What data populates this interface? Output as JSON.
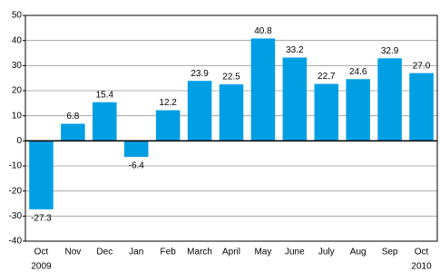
{
  "chart_data": {
    "type": "bar",
    "categories": [
      "Oct",
      "Nov",
      "Dec",
      "Jan",
      "Feb",
      "March",
      "April",
      "May",
      "June",
      "July",
      "Aug",
      "Sep",
      "Oct"
    ],
    "x_sublabels": [
      "2009",
      null,
      null,
      null,
      null,
      null,
      null,
      null,
      null,
      null,
      null,
      null,
      "2010"
    ],
    "values": [
      -27.3,
      6.8,
      15.4,
      -6.4,
      12.2,
      23.9,
      22.5,
      40.8,
      33.2,
      22.7,
      24.6,
      32.9,
      27.0
    ],
    "value_labels": [
      "-27.3",
      "6.8",
      "15.4",
      "-6.4",
      "12.2",
      "23.9",
      "22.5",
      "40.8",
      "33.2",
      "22.7",
      "24.6",
      "32.9",
      "27.0"
    ],
    "color": "#009fe3",
    "ylim": [
      -40,
      50
    ],
    "yticks": [
      -40,
      -30,
      -20,
      -10,
      0,
      10,
      20,
      30,
      40,
      50
    ],
    "grid": true
  }
}
